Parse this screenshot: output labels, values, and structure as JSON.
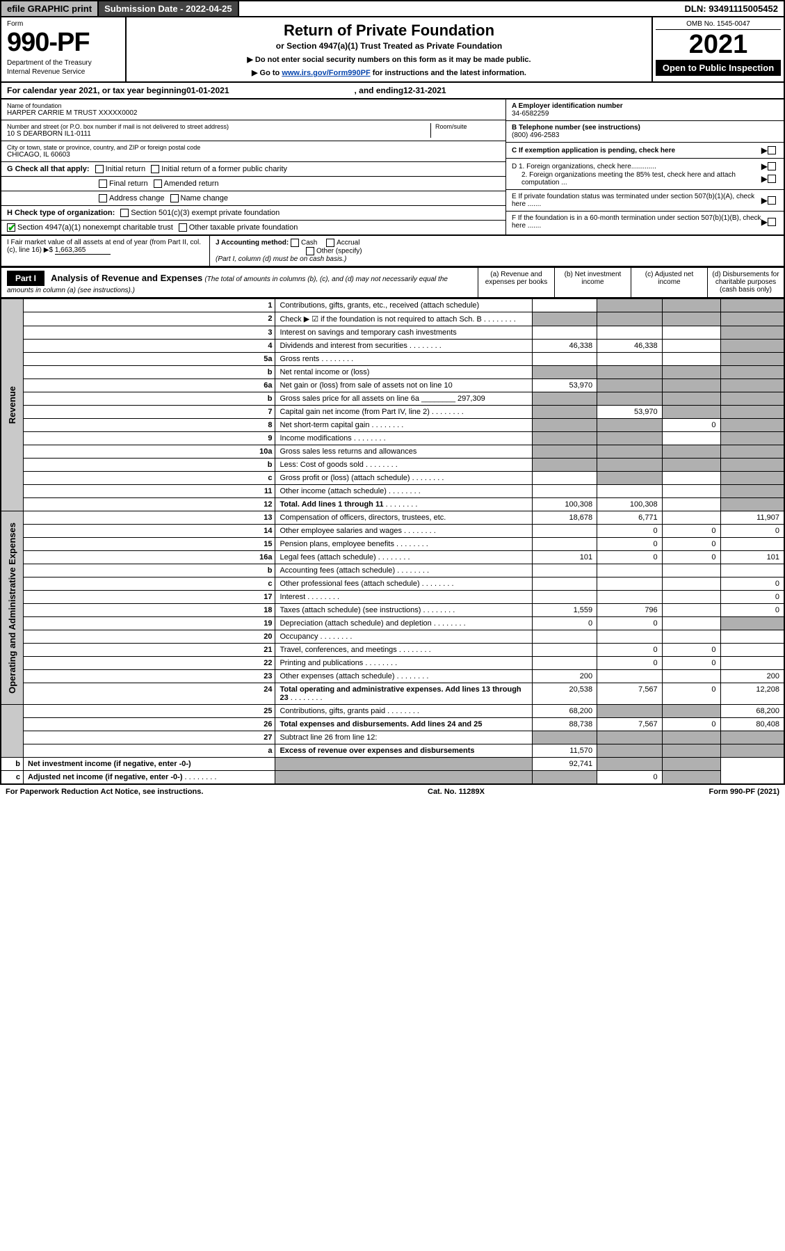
{
  "top": {
    "efile": "efile GRAPHIC print",
    "submission_label": "Submission Date - 2022-04-25",
    "dln": "DLN: 93491115005452"
  },
  "header": {
    "form_word": "Form",
    "form_num": "990-PF",
    "dept": "Department of the Treasury",
    "irs": "Internal Revenue Service",
    "title": "Return of Private Foundation",
    "sub1": "or Section 4947(a)(1) Trust Treated as Private Foundation",
    "sub2": "▶ Do not enter social security numbers on this form as it may be made public.",
    "sub3_pre": "▶ Go to ",
    "sub3_link": "www.irs.gov/Form990PF",
    "sub3_post": " for instructions and the latest information.",
    "omb": "OMB No. 1545-0047",
    "year": "2021",
    "open": "Open to Public Inspection"
  },
  "calrow": {
    "pre": "For calendar year 2021, or tax year beginning ",
    "begin": "01-01-2021",
    "mid": " , and ending ",
    "end": "12-31-2021"
  },
  "entity": {
    "name_label": "Name of foundation",
    "name": "HARPER CARRIE M TRUST XXXXX0002",
    "addr_label": "Number and street (or P.O. box number if mail is not delivered to street address)",
    "addr": "10 S DEARBORN IL1-0111",
    "room_label": "Room/suite",
    "city_label": "City or town, state or province, country, and ZIP or foreign postal code",
    "city": "CHICAGO, IL  60603",
    "a_label": "A Employer identification number",
    "a_val": "34-6582259",
    "b_label": "B Telephone number (see instructions)",
    "b_val": "(800) 496-2583",
    "c_label": "C If exemption application is pending, check here",
    "d1": "D 1. Foreign organizations, check here.............",
    "d2": "2. Foreign organizations meeting the 85% test, check here and attach computation ...",
    "e": "E If private foundation status was terminated under section 507(b)(1)(A), check here .......",
    "f": "F If the foundation is in a 60-month termination under section 507(b)(1)(B), check here .......",
    "g_label": "G Check all that apply:",
    "g_opts": [
      "Initial return",
      "Initial return of a former public charity",
      "Final return",
      "Amended return",
      "Address change",
      "Name change"
    ],
    "h_label": "H Check type of organization:",
    "h_opts": [
      "Section 501(c)(3) exempt private foundation",
      "Section 4947(a)(1) nonexempt charitable trust",
      "Other taxable private foundation"
    ],
    "i_label": "I Fair market value of all assets at end of year (from Part II, col. (c), line 16) ▶$ ",
    "i_val": "1,663,365",
    "j_label": "J Accounting method:",
    "j_opts": [
      "Cash",
      "Accrual",
      "Other (specify)"
    ],
    "j_note": "(Part I, column (d) must be on cash basis.)"
  },
  "part1": {
    "header": "Part I",
    "title": "Analysis of Revenue and Expenses",
    "note": "(The total of amounts in columns (b), (c), and (d) may not necessarily equal the amounts in column (a) (see instructions).)",
    "cols": [
      "(a) Revenue and expenses per books",
      "(b) Net investment income",
      "(c) Adjusted net income",
      "(d) Disbursements for charitable purposes (cash basis only)"
    ]
  },
  "vlabels": {
    "rev": "Revenue",
    "op": "Operating and Administrative Expenses"
  },
  "rows": [
    {
      "n": "1",
      "d": "Contributions, gifts, grants, etc., received (attach schedule)",
      "a": "",
      "b": "shaded",
      "c": "shaded",
      "e": "shaded"
    },
    {
      "n": "2",
      "d": "Check ▶ ☑ if the foundation is not required to attach Sch. B",
      "dots": true,
      "a": "shaded",
      "b": "shaded",
      "c": "shaded",
      "e": "shaded"
    },
    {
      "n": "3",
      "d": "Interest on savings and temporary cash investments",
      "a": "",
      "b": "",
      "c": "",
      "e": "shaded"
    },
    {
      "n": "4",
      "d": "Dividends and interest from securities",
      "dots": true,
      "a": "46,338",
      "b": "46,338",
      "c": "",
      "e": "shaded"
    },
    {
      "n": "5a",
      "d": "Gross rents",
      "dots": true,
      "a": "",
      "b": "",
      "c": "",
      "e": "shaded"
    },
    {
      "n": "b",
      "d": "Net rental income or (loss)",
      "a": "shaded",
      "b": "shaded",
      "c": "shaded",
      "e": "shaded"
    },
    {
      "n": "6a",
      "d": "Net gain or (loss) from sale of assets not on line 10",
      "a": "53,970",
      "b": "shaded",
      "c": "shaded",
      "e": "shaded"
    },
    {
      "n": "b",
      "d": "Gross sales price for all assets on line 6a ________ 297,309",
      "a": "shaded",
      "b": "shaded",
      "c": "shaded",
      "e": "shaded"
    },
    {
      "n": "7",
      "d": "Capital gain net income (from Part IV, line 2)",
      "dots": true,
      "a": "shaded",
      "b": "53,970",
      "c": "shaded",
      "e": "shaded"
    },
    {
      "n": "8",
      "d": "Net short-term capital gain",
      "dots": true,
      "a": "shaded",
      "b": "shaded",
      "c": "0",
      "e": "shaded"
    },
    {
      "n": "9",
      "d": "Income modifications",
      "dots": true,
      "a": "shaded",
      "b": "shaded",
      "c": "",
      "e": "shaded"
    },
    {
      "n": "10a",
      "d": "Gross sales less returns and allowances",
      "a": "shaded",
      "b": "shaded",
      "c": "shaded",
      "e": "shaded"
    },
    {
      "n": "b",
      "d": "Less: Cost of goods sold",
      "dots": true,
      "a": "shaded",
      "b": "shaded",
      "c": "shaded",
      "e": "shaded"
    },
    {
      "n": "c",
      "d": "Gross profit or (loss) (attach schedule)",
      "dots": true,
      "a": "",
      "b": "shaded",
      "c": "",
      "e": "shaded"
    },
    {
      "n": "11",
      "d": "Other income (attach schedule)",
      "dots": true,
      "a": "",
      "b": "",
      "c": "",
      "e": "shaded"
    },
    {
      "n": "12",
      "d": "Total. Add lines 1 through 11",
      "bold": true,
      "dots": true,
      "a": "100,308",
      "b": "100,308",
      "c": "",
      "e": "shaded"
    },
    {
      "n": "13",
      "d": "Compensation of officers, directors, trustees, etc.",
      "a": "18,678",
      "b": "6,771",
      "c": "",
      "e": "11,907"
    },
    {
      "n": "14",
      "d": "Other employee salaries and wages",
      "dots": true,
      "a": "",
      "b": "0",
      "c": "0",
      "e": "0"
    },
    {
      "n": "15",
      "d": "Pension plans, employee benefits",
      "dots": true,
      "a": "",
      "b": "0",
      "c": "0",
      "e": ""
    },
    {
      "n": "16a",
      "d": "Legal fees (attach schedule)",
      "dots": true,
      "a": "101",
      "b": "0",
      "c": "0",
      "e": "101"
    },
    {
      "n": "b",
      "d": "Accounting fees (attach schedule)",
      "dots": true,
      "a": "",
      "b": "",
      "c": "",
      "e": ""
    },
    {
      "n": "c",
      "d": "Other professional fees (attach schedule)",
      "dots": true,
      "a": "",
      "b": "",
      "c": "",
      "e": "0"
    },
    {
      "n": "17",
      "d": "Interest",
      "dots": true,
      "a": "",
      "b": "",
      "c": "",
      "e": "0"
    },
    {
      "n": "18",
      "d": "Taxes (attach schedule) (see instructions)",
      "dots": true,
      "a": "1,559",
      "b": "796",
      "c": "",
      "e": "0"
    },
    {
      "n": "19",
      "d": "Depreciation (attach schedule) and depletion",
      "dots": true,
      "a": "0",
      "b": "0",
      "c": "",
      "e": "shaded"
    },
    {
      "n": "20",
      "d": "Occupancy",
      "dots": true,
      "a": "",
      "b": "",
      "c": "",
      "e": ""
    },
    {
      "n": "21",
      "d": "Travel, conferences, and meetings",
      "dots": true,
      "a": "",
      "b": "0",
      "c": "0",
      "e": ""
    },
    {
      "n": "22",
      "d": "Printing and publications",
      "dots": true,
      "a": "",
      "b": "0",
      "c": "0",
      "e": ""
    },
    {
      "n": "23",
      "d": "Other expenses (attach schedule)",
      "dots": true,
      "a": "200",
      "b": "",
      "c": "",
      "e": "200"
    },
    {
      "n": "24",
      "d": "Total operating and administrative expenses. Add lines 13 through 23",
      "bold": true,
      "dots": true,
      "a": "20,538",
      "b": "7,567",
      "c": "0",
      "e": "12,208"
    },
    {
      "n": "25",
      "d": "Contributions, gifts, grants paid",
      "dots": true,
      "a": "68,200",
      "b": "shaded",
      "c": "shaded",
      "e": "68,200"
    },
    {
      "n": "26",
      "d": "Total expenses and disbursements. Add lines 24 and 25",
      "bold": true,
      "a": "88,738",
      "b": "7,567",
      "c": "0",
      "e": "80,408"
    },
    {
      "n": "27",
      "d": "Subtract line 26 from line 12:",
      "a": "shaded",
      "b": "shaded",
      "c": "shaded",
      "e": "shaded"
    },
    {
      "n": "a",
      "d": "Excess of revenue over expenses and disbursements",
      "bold": true,
      "a": "11,570",
      "b": "shaded",
      "c": "shaded",
      "e": "shaded"
    },
    {
      "n": "b",
      "d": "Net investment income (if negative, enter -0-)",
      "bold": true,
      "a": "shaded",
      "b": "92,741",
      "c": "shaded",
      "e": "shaded"
    },
    {
      "n": "c",
      "d": "Adjusted net income (if negative, enter -0-)",
      "bold": true,
      "dots": true,
      "a": "shaded",
      "b": "shaded",
      "c": "0",
      "e": "shaded"
    }
  ],
  "footer": {
    "left": "For Paperwork Reduction Act Notice, see instructions.",
    "mid": "Cat. No. 11289X",
    "right": "Form 990-PF (2021)"
  }
}
